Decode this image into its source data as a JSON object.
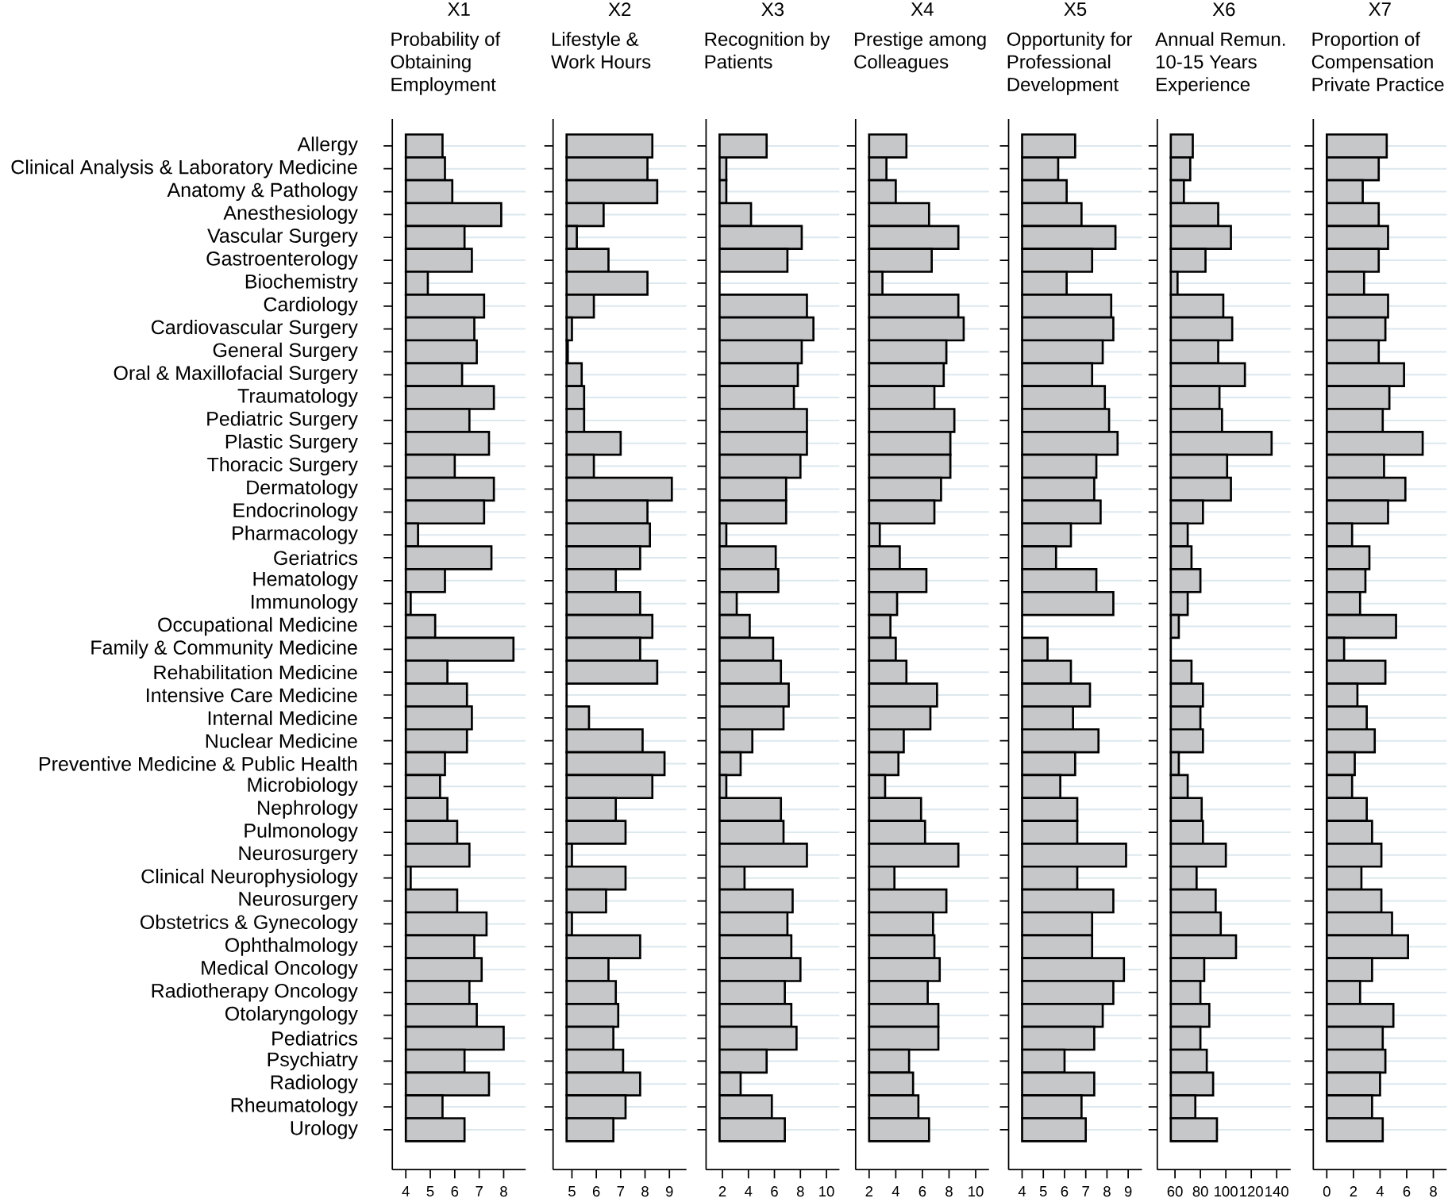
{
  "chart_data": [
    {
      "type": "bar",
      "orientation": "horizontal",
      "title": "X1",
      "subtitle": "Probability of Obtaining Employment",
      "categories": [
        "Allergy",
        "Clinical Analysis & Laboratory Medicine",
        "Anatomy & Pathology",
        "Anesthesiology",
        "Vascular Surgery",
        "Gastroenterology",
        "Biochemistry",
        "Cardiology",
        "Cardiovascular Surgery",
        "General Surgery",
        "Oral & Maxillofacial Surgery",
        "Traumatology",
        "Pediatric Surgery",
        "Plastic Surgery",
        "Thoracic Surgery",
        "Dermatology",
        "Endocrinology",
        "Pharmacology",
        "Geriatrics",
        "Hematology",
        "Immunology",
        "Occupational Medicine",
        "Family & Community Medicine",
        "Rehabilitation Medicine",
        "Intensive Care Medicine",
        "Internal Medicine",
        "Nuclear Medicine",
        "Preventive Medicine & Public Health",
        "Microbiology",
        "Nephrology",
        "Pulmonology",
        "Neurosurgery",
        "Clinical Neurophysiology",
        "Neurosurgery",
        "Obstetrics & Gynecology",
        "Ophthalmology",
        "Medical Oncology",
        "Radiotherapy Oncology",
        "Otolaryngology",
        "Pediatrics",
        "Psychiatry",
        "Radiology",
        "Rheumatology",
        "Urology"
      ],
      "values": [
        5.5,
        5.6,
        5.9,
        7.9,
        6.4,
        6.7,
        4.9,
        7.2,
        6.8,
        6.9,
        6.3,
        7.6,
        6.6,
        7.4,
        6.0,
        7.6,
        7.2,
        4.5,
        7.5,
        5.6,
        4.2,
        5.2,
        8.4,
        5.7,
        6.5,
        6.7,
        6.5,
        5.6,
        5.4,
        5.7,
        6.1,
        6.6,
        4.2,
        6.1,
        7.3,
        6.8,
        7.1,
        6.6,
        6.9,
        8.0,
        6.4,
        7.4,
        5.5,
        6.4
      ],
      "color": "#c6c7c9",
      "xlim": [
        4.0,
        8.9
      ],
      "xticks": [
        4,
        5,
        6,
        7,
        8
      ],
      "grid": "y"
    },
    {
      "type": "bar",
      "orientation": "horizontal",
      "title": "X2",
      "subtitle": "Lifestyle & Work Hours",
      "categories": [
        null,
        null,
        null,
        null,
        null,
        null,
        null,
        null,
        null,
        null,
        null,
        null,
        null,
        null,
        null,
        null,
        null,
        null,
        null,
        null,
        null,
        null,
        null,
        null,
        null,
        null,
        null,
        null,
        null,
        null,
        null,
        null,
        null,
        null,
        null,
        null,
        null,
        null,
        null,
        null,
        null,
        null,
        null,
        null
      ],
      "values": [
        8.3,
        8.1,
        8.5,
        6.3,
        5.2,
        6.5,
        8.1,
        5.9,
        5.0,
        4.83,
        5.4,
        5.5,
        5.5,
        7.0,
        5.9,
        9.1,
        8.1,
        8.2,
        7.8,
        6.8,
        7.8,
        8.3,
        7.8,
        8.5,
        4.78,
        5.7,
        7.9,
        8.8,
        8.3,
        6.8,
        7.2,
        5.0,
        7.2,
        6.4,
        5.0,
        7.8,
        6.5,
        6.8,
        6.9,
        6.7,
        7.1,
        7.8,
        7.2,
        6.7
      ],
      "color": "#c6c7c9",
      "xlim": [
        4.78,
        9.7
      ],
      "xticks": [
        5,
        6,
        7,
        8,
        9
      ],
      "grid": "y",
      "tick_labels": "x"
    },
    {
      "type": "bar",
      "orientation": "horizontal",
      "title": "X3",
      "subtitle": "Recognition by Patients",
      "categories": [
        null,
        null,
        null,
        null,
        null,
        null,
        null,
        null,
        null,
        null,
        null,
        null,
        null,
        null,
        null,
        null,
        null,
        null,
        null,
        null,
        null,
        null,
        null,
        null,
        null,
        null,
        null,
        null,
        null,
        null,
        null,
        null,
        null,
        null,
        null,
        null,
        null,
        null,
        null,
        null,
        null,
        null,
        null,
        null
      ],
      "values": [
        5.4,
        2.3,
        2.3,
        4.2,
        8.1,
        7.0,
        1.78,
        8.5,
        9.0,
        8.1,
        7.8,
        7.5,
        8.5,
        8.5,
        8.0,
        6.9,
        6.9,
        2.3,
        6.1,
        6.3,
        3.1,
        4.1,
        5.9,
        6.5,
        7.1,
        6.7,
        4.3,
        3.4,
        2.3,
        6.5,
        6.7,
        8.5,
        3.7,
        7.4,
        7.0,
        7.3,
        8.0,
        6.8,
        7.3,
        7.7,
        5.4,
        3.4,
        5.8,
        6.8
      ],
      "color": "#c6c7c9",
      "xlim": [
        1.78,
        11.0
      ],
      "xticks": [
        2,
        4,
        6,
        8,
        10
      ],
      "grid": "y",
      "tick_labels": "x"
    },
    {
      "type": "bar",
      "orientation": "horizontal",
      "title": "X4",
      "subtitle": "Prestige among Colleagues",
      "categories": [
        null,
        null,
        null,
        null,
        null,
        null,
        null,
        null,
        null,
        null,
        null,
        null,
        null,
        null,
        null,
        null,
        null,
        null,
        null,
        null,
        null,
        null,
        null,
        null,
        null,
        null,
        null,
        null,
        null,
        null,
        null,
        null,
        null,
        null,
        null,
        null,
        null,
        null,
        null,
        null,
        null,
        null,
        null,
        null
      ],
      "values": [
        4.8,
        3.3,
        4.0,
        6.5,
        8.7,
        6.7,
        3.0,
        8.7,
        9.1,
        7.8,
        7.6,
        6.9,
        8.4,
        8.1,
        8.1,
        7.4,
        6.9,
        2.8,
        4.3,
        6.3,
        4.1,
        3.6,
        4.0,
        4.8,
        7.1,
        6.6,
        4.6,
        4.2,
        3.2,
        5.9,
        6.2,
        8.7,
        3.9,
        7.8,
        6.8,
        6.9,
        7.3,
        6.4,
        7.2,
        7.2,
        5.0,
        5.3,
        5.7,
        6.5
      ],
      "color": "#c6c7c9",
      "xlim": [
        2.0,
        11.0
      ],
      "xticks": [
        2,
        4,
        6,
        8,
        10
      ],
      "grid": "y",
      "tick_labels": "x"
    },
    {
      "type": "bar",
      "orientation": "horizontal",
      "title": "X5",
      "subtitle": "Opportunity for Professional Development",
      "categories": [
        null,
        null,
        null,
        null,
        null,
        null,
        null,
        null,
        null,
        null,
        null,
        null,
        null,
        null,
        null,
        null,
        null,
        null,
        null,
        null,
        null,
        null,
        null,
        null,
        null,
        null,
        null,
        null,
        null,
        null,
        null,
        null,
        null,
        null,
        null,
        null,
        null,
        null,
        null,
        null,
        null,
        null,
        null,
        null
      ],
      "values": [
        6.5,
        5.7,
        6.1,
        6.8,
        8.4,
        7.3,
        6.1,
        8.2,
        8.3,
        7.8,
        7.3,
        7.9,
        8.1,
        8.5,
        7.5,
        7.4,
        7.7,
        6.3,
        5.6,
        7.5,
        8.3,
        4.0,
        5.2,
        6.3,
        7.2,
        6.4,
        7.6,
        6.5,
        5.8,
        6.6,
        6.6,
        8.9,
        6.6,
        8.3,
        7.3,
        7.3,
        8.8,
        8.3,
        7.8,
        7.4,
        6.0,
        7.4,
        6.8,
        7.0
      ],
      "color": "#c6c7c9",
      "xlim": [
        4.0,
        9.65
      ],
      "xticks": [
        4,
        5,
        6,
        7,
        8,
        9
      ],
      "grid": "y",
      "tick_labels": "x"
    },
    {
      "type": "bar",
      "orientation": "horizontal",
      "title": "X6",
      "subtitle": "Annual Remun. 10-15 Years Experience",
      "categories": [
        null,
        null,
        null,
        null,
        null,
        null,
        null,
        null,
        null,
        null,
        null,
        null,
        null,
        null,
        null,
        null,
        null,
        null,
        null,
        null,
        null,
        null,
        null,
        null,
        null,
        null,
        null,
        null,
        null,
        null,
        null,
        null,
        null,
        null,
        null,
        null,
        null,
        null,
        null,
        null,
        null,
        null,
        null,
        null
      ],
      "values": [
        74,
        72,
        67,
        94,
        104,
        84,
        62,
        98,
        105,
        94,
        115,
        95,
        97,
        136,
        101,
        104,
        82,
        70,
        73,
        80,
        70,
        63,
        56.7,
        73,
        82,
        80,
        82,
        63,
        70,
        81,
        82,
        100,
        77,
        92,
        96,
        108,
        83,
        80,
        87,
        80,
        85,
        90,
        76,
        93
      ],
      "color": "#c6c7c9",
      "xlim": [
        56.7,
        151
      ],
      "xticks": [
        60,
        80,
        100,
        120,
        140
      ],
      "grid": "y",
      "tick_labels": "x"
    },
    {
      "type": "bar",
      "orientation": "horizontal",
      "title": "X7",
      "subtitle": "Proportion of Compensation Private Practice",
      "categories": [
        null,
        null,
        null,
        null,
        null,
        null,
        null,
        null,
        null,
        null,
        null,
        null,
        null,
        null,
        null,
        null,
        null,
        null,
        null,
        null,
        null,
        null,
        null,
        null,
        null,
        null,
        null,
        null,
        null,
        null,
        null,
        null,
        null,
        null,
        null,
        null,
        null,
        null,
        null,
        null,
        null,
        null,
        null,
        null
      ],
      "values": [
        4.5,
        3.9,
        2.7,
        3.9,
        4.6,
        3.9,
        2.8,
        4.6,
        4.4,
        3.9,
        5.8,
        4.7,
        4.2,
        7.2,
        4.3,
        5.9,
        4.6,
        1.9,
        3.2,
        2.9,
        2.5,
        5.2,
        1.3,
        4.4,
        2.3,
        3.0,
        3.6,
        2.1,
        1.9,
        3.0,
        3.4,
        4.1,
        2.6,
        4.1,
        4.9,
        6.1,
        3.4,
        2.5,
        5.0,
        4.2,
        4.4,
        4.0,
        3.4,
        4.2
      ],
      "color": "#c6c7c9",
      "xlim": [
        0,
        9.0
      ],
      "xticks": [
        0,
        2,
        4,
        6,
        8
      ],
      "grid": "y",
      "tick_labels": "x"
    }
  ]
}
